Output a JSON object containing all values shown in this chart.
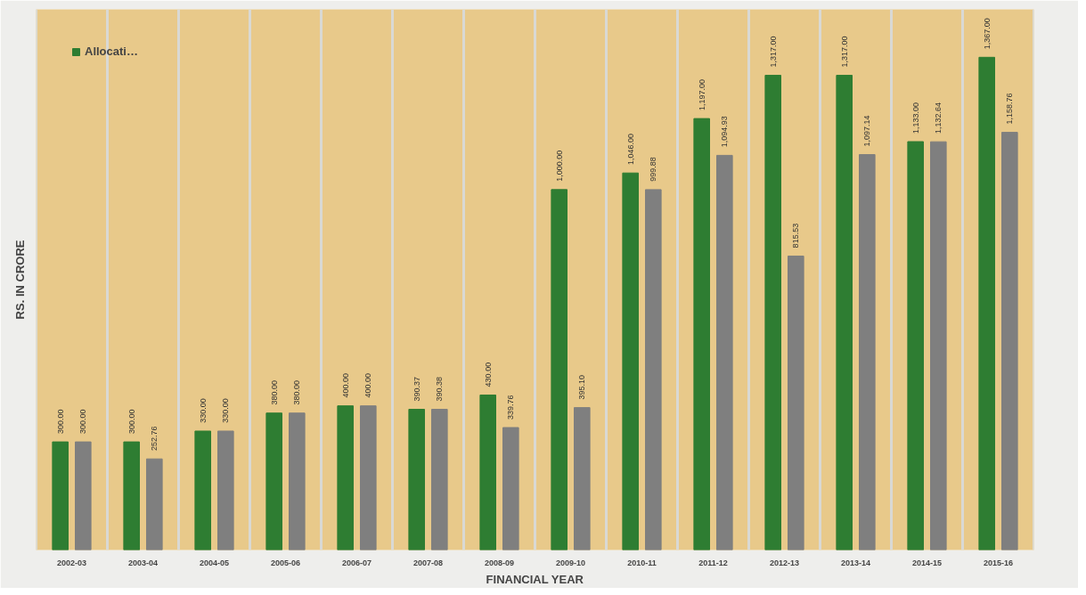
{
  "chart_data": {
    "type": "bar",
    "xlabel": "FINANCIAL YEAR",
    "ylabel": "RS. IN CRORE",
    "categories": [
      "2002-03",
      "2003-04",
      "2004-05",
      "2005-06",
      "2006-07",
      "2007-08",
      "2008-09",
      "2009-10",
      "2010-11",
      "2011-12",
      "2012-13",
      "2013-14",
      "2014-15",
      "2015-16"
    ],
    "series": [
      {
        "name": "Allocati…",
        "color": "#2e7d32",
        "values": [
          300.0,
          300.0,
          330.0,
          380.0,
          400.0,
          390.37,
          430.0,
          1000.0,
          1046.0,
          1197.0,
          1317.0,
          1317.0,
          1133.0,
          1367.0
        ],
        "value_labels": [
          "300.00",
          "300.00",
          "330.00",
          "380.00",
          "400.00",
          "390.37",
          "430.00",
          "1,000.00",
          "1,046.00",
          "1,197.00",
          "1,317.00",
          "1,317.00",
          "1,133.00",
          "1,367.00"
        ]
      },
      {
        "color": "#7f7f7f",
        "values": [
          300.0,
          252.76,
          330.0,
          380.0,
          400.0,
          390.38,
          339.76,
          395.1,
          999.88,
          1094.93,
          815.53,
          1097.14,
          1132.64,
          1158.76
        ],
        "value_labels": [
          "300.00",
          "252.76",
          "330.00",
          "380.00",
          "400.00",
          "390.38",
          "339.76",
          "395.10",
          "999.88",
          "1,094.93",
          "815.53",
          "1,097.14",
          "1,132.64",
          "1,158.76"
        ]
      }
    ],
    "ylim": [
      0,
      1500
    ],
    "tick_labels": "x",
    "grid": "x",
    "legend": "top left"
  }
}
